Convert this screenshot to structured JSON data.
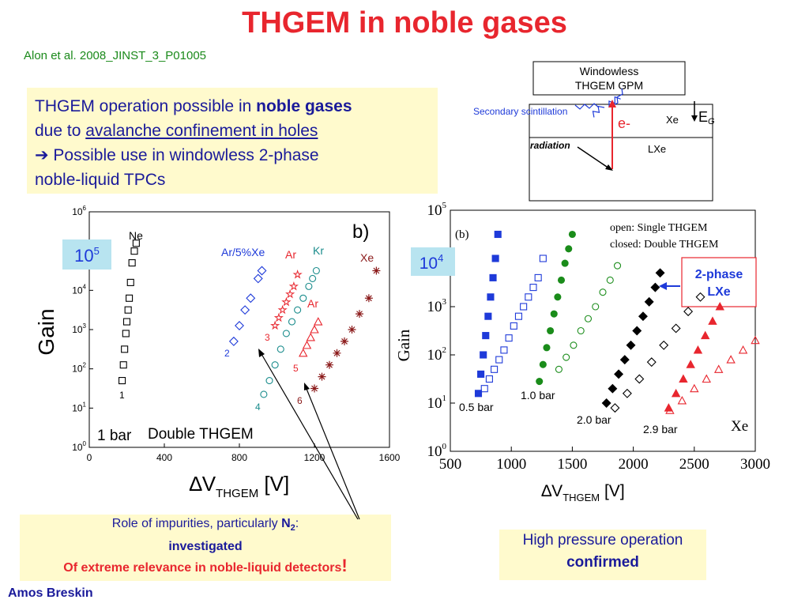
{
  "title": "THGEM in noble gases",
  "reference": "Alon et al. 2008_JINST_3_P01005",
  "info": {
    "line1_a": "THGEM operation possible in ",
    "line1_b": "noble gases",
    "line2_a": "due to ",
    "line2_b": "avalanche confinement in holes",
    "line3": "➔ Possible use in windowless 2-phase",
    "line4": "noble-liquid TPCs"
  },
  "diagram": {
    "box_label_1": "Windowless",
    "box_label_2": "THGEM GPM",
    "secondary_scintillation": "Secondary scintillation",
    "electron": "e-",
    "gas": "Xe",
    "liquid": "LXe",
    "field": "E",
    "field_sub": "G",
    "radiation": "radiation"
  },
  "impurities": {
    "line1": "Role of impurities, particularly ",
    "n2": "N",
    "n2_sub": "2",
    "colon": ":",
    "line2": "investigated",
    "line3": "Of extreme relevance in noble-liquid detectors",
    "bang": "!"
  },
  "high_pressure": {
    "line1": "High pressure operation",
    "line2": "confirmed"
  },
  "author": "Amos Breskin",
  "colors": {
    "title": "#e8262e",
    "reference": "#1b8a1b",
    "box_bg": "#fffacd",
    "text_blue": "#1a1a9a",
    "red": "#e8262e",
    "green": "#1a8c1a",
    "teal": "#1a8c8c",
    "darkred": "#8b1a1a",
    "blue": "#1e3ad9"
  },
  "chart_data": [
    {
      "type": "scatter",
      "panel_label": "b)",
      "badge": "10",
      "badge_sup": "5",
      "xlabel": "∆V",
      "xlabel_sub": "THGEM",
      "xlabel_unit": " [V]",
      "ylabel": "Gain",
      "xlim": [
        0,
        1600
      ],
      "ylim_log10": [
        0,
        6
      ],
      "x_ticks": [
        "0",
        "400",
        "800",
        "1200",
        "1600"
      ],
      "y_ticks": [
        "0",
        "1",
        "2",
        "3",
        "4",
        "5",
        "6"
      ],
      "y_tick_base": "10",
      "notes": [
        "1 bar",
        "Double THGEM"
      ],
      "series": [
        {
          "name": "Ne",
          "marker": "square-open",
          "color": "#000000",
          "label_num": "1",
          "x": [
            175,
            182,
            188,
            195,
            200,
            207,
            213,
            220,
            228,
            240,
            250
          ],
          "gain_log10": [
            1.7,
            2.1,
            2.5,
            2.9,
            3.2,
            3.5,
            3.8,
            4.2,
            4.7,
            5.0,
            5.2
          ]
        },
        {
          "name": "Ar/5%Xe",
          "marker": "diamond-open",
          "color": "#1e3ad9",
          "label_num": "2",
          "x": [
            770,
            800,
            830,
            860,
            900,
            920
          ],
          "gain_log10": [
            2.7,
            3.1,
            3.5,
            3.8,
            4.3,
            4.5
          ]
        },
        {
          "name": "Ar",
          "marker": "star-open",
          "color": "#e8262e",
          "label_num": "3",
          "x": [
            990,
            1010,
            1030,
            1050,
            1070,
            1090,
            1110
          ],
          "gain_log10": [
            3.1,
            3.3,
            3.5,
            3.7,
            3.9,
            4.1,
            4.4
          ]
        },
        {
          "name": "Kr",
          "marker": "circle-open",
          "color": "#1a8c8c",
          "label_num": "4",
          "x": [
            930,
            960,
            990,
            1020,
            1050,
            1080,
            1110,
            1140,
            1170,
            1190,
            1210
          ],
          "gain_log10": [
            1.35,
            1.7,
            2.1,
            2.5,
            2.9,
            3.2,
            3.5,
            3.8,
            4.1,
            4.3,
            4.5
          ]
        },
        {
          "name": "Ar",
          "marker": "triangle-open",
          "color": "#e8262e",
          "label_num": "5",
          "x": [
            1140,
            1160,
            1180,
            1200,
            1220
          ],
          "gain_log10": [
            2.4,
            2.6,
            2.8,
            3.0,
            3.2
          ]
        },
        {
          "name": "Xe",
          "marker": "asterisk",
          "color": "#8b1a1a",
          "label_num": "6",
          "x": [
            1200,
            1240,
            1280,
            1320,
            1360,
            1400,
            1440,
            1490,
            1530
          ],
          "gain_log10": [
            1.5,
            1.8,
            2.1,
            2.4,
            2.7,
            3.0,
            3.4,
            3.8,
            4.5
          ]
        }
      ]
    },
    {
      "type": "scatter",
      "panel_label": "(b)",
      "badge": "10",
      "badge_sup": "4",
      "xlabel": "∆V",
      "xlabel_sub": "THGEM",
      "xlabel_unit": " [V]",
      "ylabel": "Gain",
      "xlim": [
        500,
        3000
      ],
      "ylim_log10": [
        0,
        5
      ],
      "x_ticks": [
        "500",
        "1000",
        "1500",
        "2000",
        "2500",
        "3000"
      ],
      "y_ticks": [
        "0",
        "1",
        "2",
        "3",
        "4",
        "5"
      ],
      "y_tick_base": "10",
      "legend": [
        "open:   Single THGEM",
        "closed: Double THGEM"
      ],
      "gas": "Xe",
      "arrow_label_1": "2-phase",
      "arrow_label_2": "LXe",
      "series": [
        {
          "name": "0.5 bar",
          "marker": "square",
          "filled": true,
          "color": "#1e3ad9",
          "x": [
            730,
            750,
            770,
            790,
            810,
            830,
            850,
            870,
            890
          ],
          "gain_log10": [
            1.2,
            1.6,
            2.0,
            2.4,
            2.8,
            3.2,
            3.6,
            4.0,
            4.5
          ]
        },
        {
          "name": "0.5 bar",
          "marker": "square",
          "filled": false,
          "color": "#1e3ad9",
          "x": [
            780,
            820,
            860,
            900,
            940,
            980,
            1020,
            1060,
            1100,
            1140,
            1180,
            1220,
            1260
          ],
          "gain_log10": [
            1.3,
            1.5,
            1.7,
            1.9,
            2.1,
            2.35,
            2.6,
            2.8,
            3.0,
            3.2,
            3.4,
            3.6,
            4.0
          ]
        },
        {
          "name": "1.0 bar",
          "marker": "circle",
          "filled": true,
          "color": "#1a8c1a",
          "x": [
            1230,
            1260,
            1290,
            1320,
            1350,
            1380,
            1410,
            1440,
            1470,
            1500
          ],
          "gain_log10": [
            1.45,
            1.8,
            2.15,
            2.5,
            2.85,
            3.2,
            3.55,
            3.9,
            4.2,
            4.5
          ]
        },
        {
          "name": "1.0 bar",
          "marker": "circle",
          "filled": false,
          "color": "#1a8c1a",
          "x": [
            1390,
            1450,
            1510,
            1570,
            1630,
            1690,
            1750,
            1810,
            1870
          ],
          "gain_log10": [
            1.7,
            1.95,
            2.2,
            2.5,
            2.75,
            3.0,
            3.3,
            3.55,
            3.85
          ]
        },
        {
          "name": "2.0 bar",
          "marker": "diamond",
          "filled": true,
          "color": "#000000",
          "x": [
            1780,
            1830,
            1880,
            1930,
            1980,
            2030,
            2080,
            2130,
            2180,
            2220
          ],
          "gain_log10": [
            1.0,
            1.3,
            1.6,
            1.9,
            2.2,
            2.5,
            2.8,
            3.1,
            3.4,
            3.7
          ]
        },
        {
          "name": "2.0 bar",
          "marker": "diamond",
          "filled": false,
          "color": "#000000",
          "x": [
            1850,
            1950,
            2050,
            2150,
            2250,
            2350,
            2450,
            2550
          ],
          "gain_log10": [
            0.9,
            1.2,
            1.5,
            1.85,
            2.2,
            2.55,
            2.9,
            3.2
          ]
        },
        {
          "name": "2.9 bar",
          "marker": "triangle",
          "filled": true,
          "color": "#e8262e",
          "x": [
            2290,
            2350,
            2410,
            2470,
            2530,
            2590,
            2650,
            2710
          ],
          "gain_log10": [
            0.9,
            1.2,
            1.5,
            1.8,
            2.1,
            2.4,
            2.7,
            3.0
          ]
        },
        {
          "name": "2.9 bar",
          "marker": "triangle",
          "filled": false,
          "color": "#e8262e",
          "x": [
            2300,
            2400,
            2500,
            2600,
            2700,
            2800,
            2900,
            3000
          ],
          "gain_log10": [
            0.85,
            1.05,
            1.3,
            1.5,
            1.7,
            1.9,
            2.1,
            2.3
          ]
        }
      ]
    }
  ]
}
